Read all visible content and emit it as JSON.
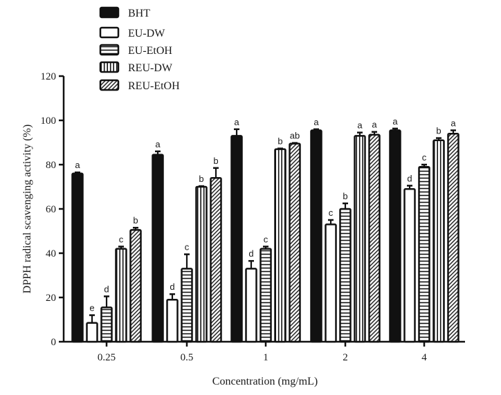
{
  "chart_data": {
    "type": "bar",
    "xlabel": "Concentration (mg/mL)",
    "ylabel": "DPPH radical scavenging activity (%)",
    "ylim": [
      0,
      120
    ],
    "yticks": [
      "0",
      "20",
      "40",
      "60",
      "80",
      "100",
      "120"
    ],
    "categories": [
      "0.25",
      "0.5",
      "1",
      "2",
      "4"
    ],
    "legend_position": "top-left",
    "series": [
      {
        "name": "BHT",
        "pattern": "solid",
        "values": [
          76,
          84.5,
          93,
          95.5,
          95.5
        ],
        "errors": [
          0.5,
          1.5,
          3,
          0.5,
          0.8
        ],
        "letters": [
          "a",
          "a",
          "a",
          "a",
          "a"
        ]
      },
      {
        "name": "EU-DW",
        "pattern": "empty",
        "values": [
          8.5,
          19,
          33,
          53,
          69
        ],
        "errors": [
          3.5,
          2.5,
          3.5,
          2,
          1.5
        ],
        "letters": [
          "e",
          "d",
          "d",
          "c",
          "d"
        ]
      },
      {
        "name": "EU-EtOH",
        "pattern": "horizontal",
        "values": [
          15.5,
          33,
          42,
          60,
          79
        ],
        "errors": [
          5,
          6.5,
          1,
          2.5,
          1
        ],
        "letters": [
          "d",
          "c",
          "c",
          "b",
          "c"
        ]
      },
      {
        "name": "REU-DW",
        "pattern": "vertical",
        "values": [
          42,
          70,
          87,
          93,
          91
        ],
        "errors": [
          1,
          0.3,
          0.3,
          1.5,
          1
        ],
        "letters": [
          "c",
          "b",
          "b",
          "a",
          "b"
        ]
      },
      {
        "name": "REU-EtOH",
        "pattern": "diagonal",
        "values": [
          50.5,
          74,
          89.5,
          93.5,
          94
        ],
        "errors": [
          1,
          4.5,
          0.3,
          1.3,
          1.5
        ],
        "letters": [
          "b",
          "b",
          "ab",
          "a",
          "a"
        ]
      }
    ]
  }
}
